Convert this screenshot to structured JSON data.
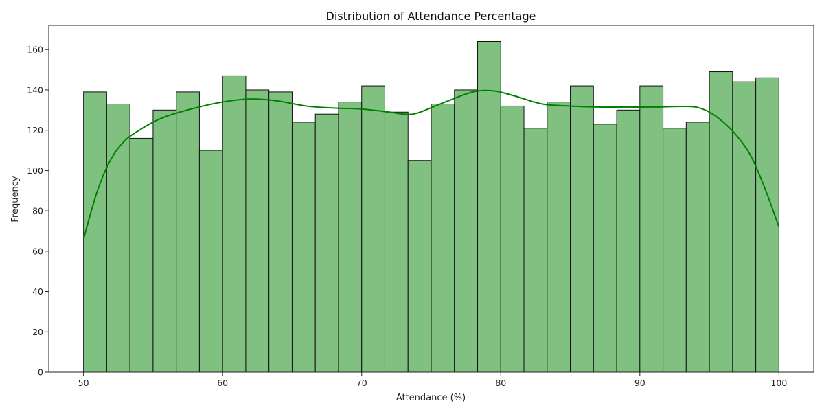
{
  "chart_data": {
    "type": "bar",
    "title": "Distribution of Attendance Percentage",
    "xlabel": "Attendance (%)",
    "ylabel": "Frequency",
    "xlim": [
      47.5,
      102.5
    ],
    "ylim": [
      0,
      172
    ],
    "x_ticks": [
      50,
      60,
      70,
      80,
      90,
      100
    ],
    "y_ticks": [
      0,
      20,
      40,
      60,
      80,
      100,
      120,
      140,
      160
    ],
    "bin_range": [
      50,
      100
    ],
    "bin_count": 30,
    "values": [
      139,
      133,
      116,
      130,
      139,
      110,
      147,
      140,
      139,
      124,
      128,
      134,
      142,
      129,
      105,
      133,
      140,
      164,
      132,
      121,
      134,
      142,
      123,
      130,
      142,
      121,
      124,
      149,
      144,
      146
    ],
    "kde": {
      "x": [
        50,
        51,
        52,
        53,
        54,
        55,
        56,
        58,
        60,
        62,
        64,
        66,
        68,
        70,
        72,
        73,
        74,
        76,
        78,
        79.5,
        81,
        83,
        85,
        87,
        89,
        91,
        93,
        94,
        95,
        96,
        97,
        98,
        99,
        100
      ],
      "y": [
        66,
        90,
        106,
        115,
        120,
        124,
        127,
        131,
        134,
        135.5,
        134.5,
        132,
        131,
        130.5,
        129,
        128,
        128.5,
        134,
        139,
        139.5,
        137,
        133,
        132,
        131.5,
        131.5,
        131.5,
        131.8,
        131.5,
        129,
        124,
        117,
        107,
        91,
        72
      ]
    },
    "bar_color": "#80c080",
    "bar_edge_color": "#111111",
    "kde_color": "#008000",
    "grid": false
  }
}
